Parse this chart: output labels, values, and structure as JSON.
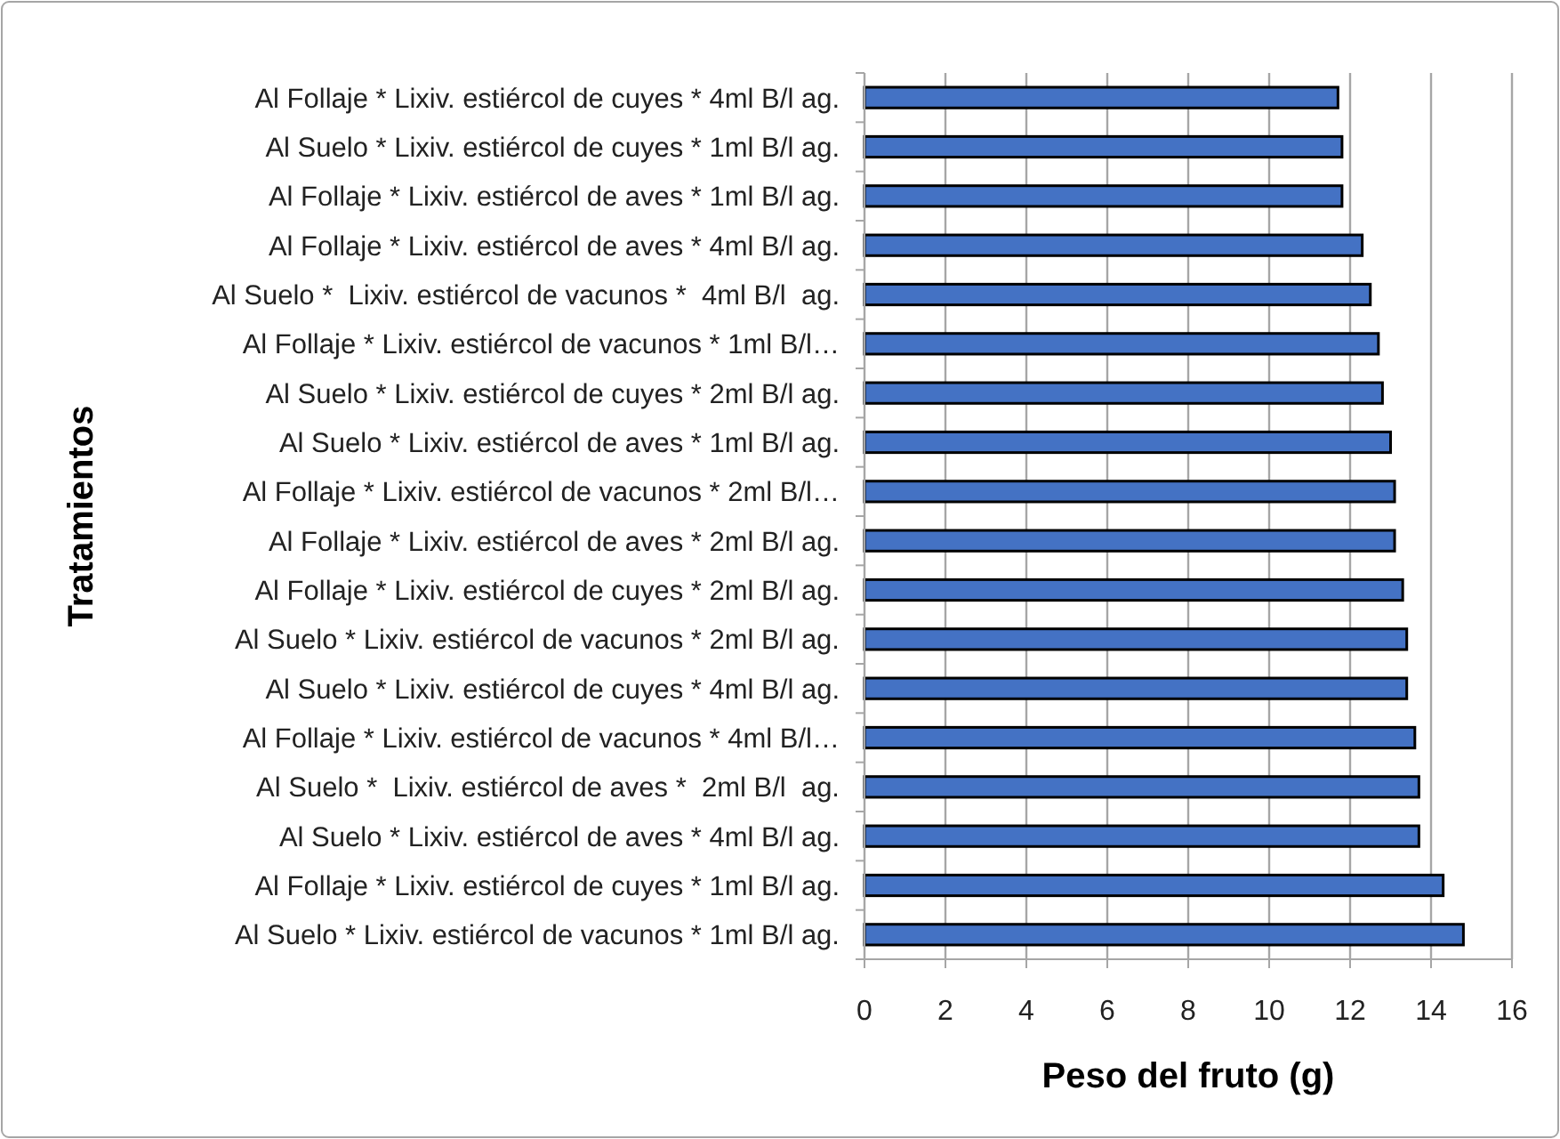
{
  "chart_data": {
    "type": "bar",
    "orientation": "horizontal",
    "xlabel": "Peso del fruto (g)",
    "ylabel": "Tratamientos",
    "categories": [
      "Al Follaje * Lixiv. estiércol de cuyes * 4ml B/l ag.",
      "Al Suelo * Lixiv. estiércol de cuyes * 1ml B/l ag.",
      "Al Follaje * Lixiv. estiércol de aves * 1ml B/l ag.",
      "Al Follaje * Lixiv. estiércol de aves * 4ml B/l ag.",
      "Al Suelo *  Lixiv. estiércol de vacunos *  4ml B/l  ag.",
      "Al Follaje * Lixiv. estiércol de vacunos * 1ml B/l…",
      "Al Suelo * Lixiv. estiércol de cuyes * 2ml B/l ag.",
      "Al Suelo * Lixiv. estiércol de aves * 1ml B/l ag.",
      "Al Follaje * Lixiv. estiércol de vacunos * 2ml B/l…",
      "Al Follaje * Lixiv. estiércol de aves * 2ml B/l ag.",
      "Al Follaje * Lixiv. estiércol de cuyes * 2ml B/l ag.",
      "Al Suelo * Lixiv. estiércol de vacunos * 2ml B/l ag.",
      "Al Suelo * Lixiv. estiércol de cuyes * 4ml B/l ag.",
      "Al Follaje * Lixiv. estiércol de vacunos * 4ml B/l…",
      "Al Suelo *  Lixiv. estiércol de aves *  2ml B/l  ag.",
      "Al Suelo * Lixiv. estiércol de aves * 4ml B/l ag.",
      "Al Follaje * Lixiv. estiércol de cuyes * 1ml B/l ag.",
      "Al Suelo * Lixiv. estiércol de vacunos * 1ml B/l ag."
    ],
    "values": [
      11.7,
      11.8,
      11.8,
      12.3,
      12.5,
      12.7,
      12.8,
      13.0,
      13.1,
      13.1,
      13.3,
      13.4,
      13.4,
      13.6,
      13.7,
      13.7,
      14.3,
      14.8
    ],
    "color": "#4472c4",
    "xlim": [
      0,
      16
    ],
    "xticks": [
      0,
      2,
      4,
      6,
      8,
      10,
      12,
      14,
      16
    ],
    "grid": "x"
  }
}
